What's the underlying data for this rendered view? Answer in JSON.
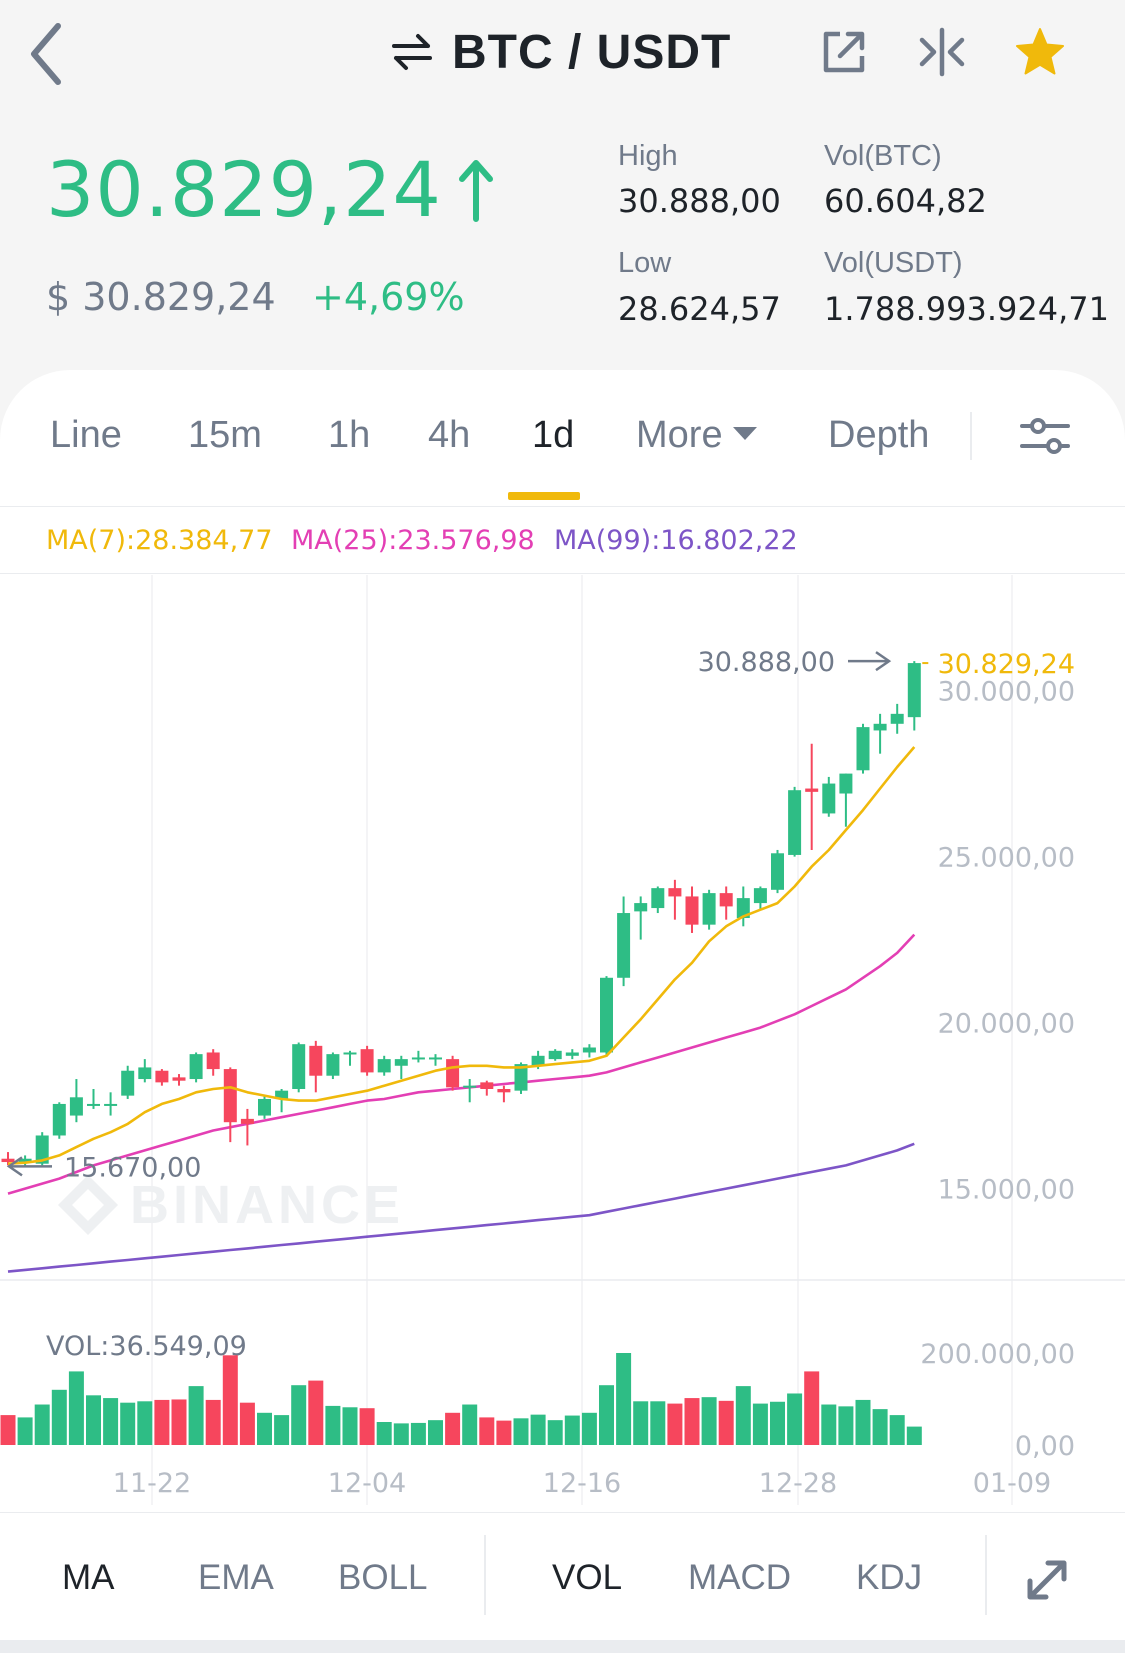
{
  "header": {
    "back_icon": "chevron-left-icon",
    "swap_icon": "swap-arrows-icon",
    "pair": "BTC / USDT",
    "share_icon": "external-link-icon",
    "compare_icon": "split-compare-icon",
    "favorite_icon": "star-icon",
    "favorite_color": "#f0b90b"
  },
  "price": {
    "last": "30.829,24",
    "direction_icon": "arrow-up-icon",
    "fiat": "$ 30.829,24",
    "change": "+4,69%",
    "up_color": "#2ebd85",
    "down_color": "#f6465d"
  },
  "stats": {
    "high_label": "High",
    "high": "30.888,00",
    "low_label": "Low",
    "low": "28.624,57",
    "vol_base_label": "Vol(BTC)",
    "vol_base": "60.604,82",
    "vol_quote_label": "Vol(USDT)",
    "vol_quote": "1.788.993.924,71"
  },
  "tabs": {
    "items": [
      "Line",
      "15m",
      "1h",
      "4h",
      "1d",
      "More",
      "Depth"
    ],
    "active": "1d",
    "settings_icon": "sliders-icon"
  },
  "ma": {
    "ma7": "MA(7):28.384,77",
    "ma7_color": "#f0b90b",
    "ma25": "MA(25):23.576,98",
    "ma25_color": "#e33fb4",
    "ma99": "MA(99):16.802,22",
    "ma99_color": "#7d55c7"
  },
  "chart_data": {
    "type": "candlestick",
    "watermark": "BINANCE",
    "y_ticks": [
      "30.000,00",
      "25.000,00",
      "20.000,00",
      "15.000,00"
    ],
    "y_tick_values": [
      30000,
      25000,
      20000,
      15000
    ],
    "current_price_label": "30.829,24",
    "current_price": 30829.24,
    "max_label": "30.888,00",
    "max_value": 30888,
    "min_label": "15.670,00",
    "min_value": 15670,
    "x_labels": [
      "11-22",
      "12-04",
      "12-16",
      "12-28",
      "01-09"
    ],
    "candles": [
      {
        "o": 15900,
        "h": 16100,
        "l": 15700,
        "c": 15800
      },
      {
        "o": 15800,
        "h": 16000,
        "l": 15670,
        "c": 15900
      },
      {
        "o": 15750,
        "h": 16700,
        "l": 15700,
        "c": 16600
      },
      {
        "o": 16600,
        "h": 17600,
        "l": 16500,
        "c": 17550
      },
      {
        "o": 17200,
        "h": 18300,
        "l": 17000,
        "c": 17750
      },
      {
        "o": 17500,
        "h": 18000,
        "l": 17400,
        "c": 17550
      },
      {
        "o": 17550,
        "h": 17900,
        "l": 17200,
        "c": 17550
      },
      {
        "o": 17800,
        "h": 18700,
        "l": 17700,
        "c": 18550
      },
      {
        "o": 18300,
        "h": 18900,
        "l": 18200,
        "c": 18650
      },
      {
        "o": 18550,
        "h": 18600,
        "l": 18100,
        "c": 18200
      },
      {
        "o": 18350,
        "h": 18450,
        "l": 18100,
        "c": 18250
      },
      {
        "o": 18300,
        "h": 19100,
        "l": 18200,
        "c": 19050
      },
      {
        "o": 19100,
        "h": 19200,
        "l": 18400,
        "c": 18600
      },
      {
        "o": 18600,
        "h": 18650,
        "l": 16400,
        "c": 17000
      },
      {
        "o": 17100,
        "h": 17400,
        "l": 16300,
        "c": 16950
      },
      {
        "o": 17200,
        "h": 17800,
        "l": 17100,
        "c": 17700
      },
      {
        "o": 17700,
        "h": 18000,
        "l": 17300,
        "c": 17950
      },
      {
        "o": 18000,
        "h": 19400,
        "l": 17900,
        "c": 19350
      },
      {
        "o": 19300,
        "h": 19450,
        "l": 17900,
        "c": 18400
      },
      {
        "o": 18400,
        "h": 19100,
        "l": 18300,
        "c": 19050
      },
      {
        "o": 19050,
        "h": 19150,
        "l": 18700,
        "c": 19100
      },
      {
        "o": 19200,
        "h": 19300,
        "l": 18400,
        "c": 18500
      },
      {
        "o": 18500,
        "h": 19000,
        "l": 18400,
        "c": 18900
      },
      {
        "o": 18700,
        "h": 19000,
        "l": 18300,
        "c": 18900
      },
      {
        "o": 18900,
        "h": 19150,
        "l": 18800,
        "c": 18950
      },
      {
        "o": 18950,
        "h": 19050,
        "l": 18700,
        "c": 18950
      },
      {
        "o": 18900,
        "h": 19000,
        "l": 17950,
        "c": 18050
      },
      {
        "o": 18050,
        "h": 18300,
        "l": 17600,
        "c": 18100
      },
      {
        "o": 18200,
        "h": 18250,
        "l": 17800,
        "c": 18000
      },
      {
        "o": 18000,
        "h": 18100,
        "l": 17600,
        "c": 17900
      },
      {
        "o": 17950,
        "h": 18800,
        "l": 17850,
        "c": 18750
      },
      {
        "o": 18700,
        "h": 19150,
        "l": 18600,
        "c": 19000
      },
      {
        "o": 18900,
        "h": 19200,
        "l": 18850,
        "c": 19150
      },
      {
        "o": 19000,
        "h": 19200,
        "l": 18900,
        "c": 19100
      },
      {
        "o": 19100,
        "h": 19350,
        "l": 18950,
        "c": 19250
      },
      {
        "o": 19100,
        "h": 21400,
        "l": 19000,
        "c": 21350
      },
      {
        "o": 21350,
        "h": 23800,
        "l": 21100,
        "c": 23300
      },
      {
        "o": 23350,
        "h": 23800,
        "l": 22500,
        "c": 23600
      },
      {
        "o": 23450,
        "h": 24100,
        "l": 23300,
        "c": 24050
      },
      {
        "o": 24050,
        "h": 24300,
        "l": 23100,
        "c": 23800
      },
      {
        "o": 23800,
        "h": 24100,
        "l": 22700,
        "c": 22950
      },
      {
        "o": 22950,
        "h": 24000,
        "l": 22800,
        "c": 23900
      },
      {
        "o": 23900,
        "h": 24100,
        "l": 23100,
        "c": 23500
      },
      {
        "o": 23150,
        "h": 24100,
        "l": 22900,
        "c": 23750
      },
      {
        "o": 23600,
        "h": 24100,
        "l": 23400,
        "c": 24050
      },
      {
        "o": 24000,
        "h": 25200,
        "l": 23900,
        "c": 25100
      },
      {
        "o": 25050,
        "h": 27100,
        "l": 25000,
        "c": 27000
      },
      {
        "o": 27050,
        "h": 28400,
        "l": 25200,
        "c": 26950
      },
      {
        "o": 26300,
        "h": 27400,
        "l": 26200,
        "c": 27200
      },
      {
        "o": 26900,
        "h": 27500,
        "l": 25900,
        "c": 27500
      },
      {
        "o": 27600,
        "h": 29000,
        "l": 27500,
        "c": 28900
      },
      {
        "o": 28800,
        "h": 29300,
        "l": 28100,
        "c": 29000
      },
      {
        "o": 29000,
        "h": 29600,
        "l": 28700,
        "c": 29300
      },
      {
        "o": 29200,
        "h": 30888,
        "l": 28800,
        "c": 30829
      }
    ],
    "ma7": [
      15750,
      15780,
      15850,
      16000,
      16250,
      16500,
      16700,
      16950,
      17300,
      17550,
      17700,
      17900,
      18000,
      18050,
      17900,
      17800,
      17700,
      17650,
      17650,
      17750,
      17850,
      17950,
      18100,
      18250,
      18400,
      18550,
      18650,
      18700,
      18700,
      18650,
      18650,
      18700,
      18750,
      18800,
      18850,
      19000,
      19550,
      20100,
      20700,
      21300,
      21800,
      22450,
      22900,
      23200,
      23400,
      23600,
      24100,
      24700,
      25200,
      25800,
      26400,
      27050,
      27700,
      28300
    ],
    "ma25": [
      14850,
      15000,
      15150,
      15300,
      15500,
      15700,
      15850,
      16000,
      16150,
      16300,
      16450,
      16600,
      16750,
      16850,
      16950,
      17050,
      17150,
      17250,
      17350,
      17450,
      17550,
      17650,
      17700,
      17800,
      17900,
      17950,
      18000,
      18050,
      18100,
      18150,
      18200,
      18250,
      18300,
      18350,
      18400,
      18500,
      18650,
      18800,
      18950,
      19100,
      19250,
      19400,
      19550,
      19700,
      19850,
      20050,
      20250,
      20500,
      20750,
      21000,
      21350,
      21700,
      22100,
      22650
    ],
    "ma99": [
      12500,
      12550,
      12600,
      12650,
      12700,
      12750,
      12800,
      12850,
      12900,
      12950,
      13000,
      13050,
      13100,
      13150,
      13200,
      13250,
      13300,
      13350,
      13400,
      13450,
      13500,
      13550,
      13600,
      13650,
      13700,
      13750,
      13800,
      13850,
      13900,
      13950,
      14000,
      14050,
      14100,
      14150,
      14200,
      14300,
      14400,
      14500,
      14600,
      14700,
      14800,
      14900,
      15000,
      15100,
      15200,
      15300,
      15400,
      15500,
      15600,
      15700,
      15850,
      16000,
      16150,
      16350
    ],
    "volume": {
      "label": "VOL:36.549,09",
      "y_ticks": [
        "200.000,00",
        "0,00"
      ],
      "y_tick_values": [
        200000,
        0
      ],
      "values": [
        65000,
        60000,
        88000,
        120000,
        160000,
        108000,
        102000,
        92000,
        95000,
        98000,
        99000,
        128000,
        98000,
        195000,
        92000,
        70000,
        65000,
        130000,
        140000,
        85000,
        82000,
        80000,
        50000,
        47000,
        48000,
        54000,
        70000,
        88000,
        60000,
        53000,
        58000,
        66000,
        54000,
        64000,
        70000,
        130000,
        200000,
        95000,
        95000,
        90000,
        102000,
        104000,
        96000,
        128000,
        90000,
        94000,
        112000,
        160000,
        88000,
        84000,
        98000,
        78000,
        65000,
        40000
      ]
    }
  },
  "indicators": {
    "main": [
      "MA",
      "EMA",
      "BOLL"
    ],
    "main_active": "MA",
    "sub": [
      "VOL",
      "MACD",
      "KDJ"
    ],
    "sub_active": "VOL",
    "expand_icon": "expand-arrows-icon"
  }
}
